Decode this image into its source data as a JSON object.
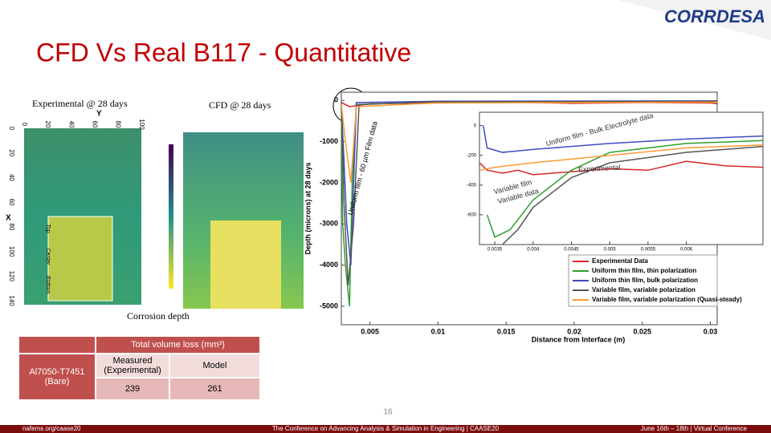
{
  "header": {
    "title": "CFD Vs Real B117 - Quantitative",
    "logo": "CORRDESA"
  },
  "images": {
    "experimental_caption": "Experimental @ 28 days",
    "cfd_caption": "CFD @ 28 days",
    "corrosion_caption": "Corrosion depth",
    "exp_axes": {
      "x_label": "Y",
      "y_label": "X",
      "xticks": [
        0,
        20,
        40,
        60,
        80,
        100
      ],
      "yticks": [
        0,
        20,
        40,
        60,
        80,
        100,
        120,
        140
      ],
      "regions": [
        "Top",
        "Center",
        "Bottom"
      ]
    }
  },
  "plot": {
    "x_label": "Distance from Interface (m)",
    "y_label": "Depth (microns) at 28 days",
    "xlim": [
      0.0029,
      0.0305
    ],
    "ylim": [
      -5450,
      200
    ],
    "xticks": [
      0.005,
      0.01,
      0.015,
      0.02,
      0.025,
      0.03
    ],
    "yticks": [
      0,
      -1000,
      -2000,
      -3000,
      -4000,
      -5000
    ],
    "annotation": "Uniform film - 60 µm Film data",
    "series": [
      {
        "name": "Experimental Data",
        "color": "#d62728",
        "x": [
          0.0029,
          0.0035,
          0.005,
          0.01,
          0.015,
          0.02,
          0.025,
          0.03,
          0.0305
        ],
        "values": [
          -50,
          -150,
          -80,
          -60,
          -40,
          -70,
          -50,
          -60,
          -80
        ]
      },
      {
        "name": "Uniform thin film, thin polarization",
        "color": "#2ca02c",
        "x": [
          0.0029,
          0.003,
          0.0032,
          0.0035,
          0.0037,
          0.004,
          0.01,
          0.0305
        ],
        "values": [
          -100,
          -3000,
          -4000,
          -5000,
          -2000,
          -100,
          -30,
          -20
        ]
      },
      {
        "name": "Uniform thin film, bulk polarization",
        "color": "#3b4cc0",
        "x": [
          0.0029,
          0.0031,
          0.0033,
          0.0036,
          0.004,
          0.01,
          0.0305
        ],
        "values": [
          -100,
          -1500,
          -3000,
          -4000,
          -50,
          -20,
          -10
        ]
      },
      {
        "name": "Variable film, variable polarization",
        "color": "#555555",
        "x": [
          0.0029,
          0.0031,
          0.0034,
          0.0038,
          0.0042,
          0.01,
          0.0305
        ],
        "values": [
          -50,
          -2500,
          -4500,
          -3000,
          -100,
          -30,
          -20
        ]
      },
      {
        "name": "Variable film, variable polarization (Quasi-steady)",
        "color": "#ff9933",
        "x": [
          0.0029,
          0.0032,
          0.0036,
          0.004,
          0.01,
          0.0305
        ],
        "values": [
          -80,
          -1000,
          -2000,
          -150,
          -60,
          -40
        ]
      }
    ],
    "inset": {
      "xlim": [
        0.0033,
        0.007
      ],
      "ylim": [
        -800,
        90
      ],
      "xticks": [
        0.0035,
        0.004,
        0.0045,
        0.005,
        0.0055,
        0.006
      ],
      "yticks": [
        0,
        -200,
        -400,
        -600
      ],
      "annotations": [
        "Uniform film - Bulk Electrolyte data",
        "Experimental",
        "Variable film",
        "Variable data"
      ],
      "series": [
        {
          "color": "#d62728",
          "x": [
            0.0033,
            0.0034,
            0.0036,
            0.0038,
            0.004,
            0.0045,
            0.005,
            0.0055,
            0.006,
            0.0065,
            0.007
          ],
          "values": [
            -250,
            -300,
            -320,
            -300,
            -330,
            -310,
            -290,
            -300,
            -240,
            -270,
            -280
          ]
        },
        {
          "color": "#2ca02c",
          "x": [
            0.0034,
            0.0035,
            0.0037,
            0.004,
            0.0045,
            0.005,
            0.006,
            0.007
          ],
          "values": [
            -600,
            -750,
            -700,
            -500,
            -300,
            -180,
            -120,
            -100
          ]
        },
        {
          "color": "#3b4cc0",
          "x": [
            0.00335,
            0.0034,
            0.0036,
            0.004,
            0.005,
            0.006,
            0.007
          ],
          "values": [
            0,
            -150,
            -180,
            -160,
            -120,
            -90,
            -70
          ]
        },
        {
          "color": "#555555",
          "x": [
            0.0036,
            0.0038,
            0.004,
            0.0045,
            0.005,
            0.006,
            0.007
          ],
          "values": [
            -800,
            -700,
            -550,
            -350,
            -250,
            -180,
            -140
          ]
        },
        {
          "color": "#ff9933",
          "x": [
            0.0033,
            0.0035,
            0.004,
            0.005,
            0.006,
            0.007
          ],
          "values": [
            -300,
            -280,
            -250,
            -200,
            -150,
            -130
          ]
        }
      ]
    }
  },
  "table": {
    "header": "Total volume loss (mm³)",
    "columns": [
      "Measured (Experimental)",
      "Model"
    ],
    "rows": [
      [
        "Al7050-T7451 (Bare)",
        "239",
        "261"
      ]
    ]
  },
  "footer": {
    "page": "16",
    "left": "nafems.org/caase20",
    "center": "The Conference on Advancing Analysis & Simulation in Engineering | CAASE20",
    "right": "June 16th – 18th | Virtual Conference"
  }
}
